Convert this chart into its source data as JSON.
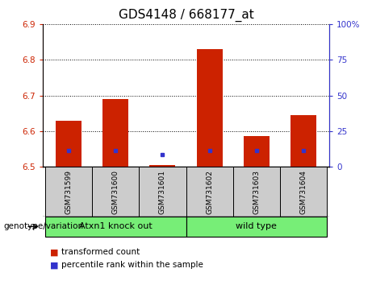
{
  "title": "GDS4148 / 668177_at",
  "samples": [
    "GSM731599",
    "GSM731600",
    "GSM731601",
    "GSM731602",
    "GSM731603",
    "GSM731604"
  ],
  "red_bar_tops": [
    6.63,
    6.69,
    6.505,
    6.83,
    6.585,
    6.645
  ],
  "blue_square_y": [
    6.545,
    6.545,
    6.535,
    6.545,
    6.545,
    6.545
  ],
  "bar_bottom": 6.5,
  "ylim_left": [
    6.5,
    6.9
  ],
  "ylim_right": [
    0,
    100
  ],
  "yticks_left": [
    6.5,
    6.6,
    6.7,
    6.8,
    6.9
  ],
  "yticks_right": [
    0,
    25,
    50,
    75,
    100
  ],
  "ytick_labels_right": [
    "0",
    "25",
    "50",
    "75",
    "100%"
  ],
  "bar_color": "#cc2200",
  "blue_color": "#3333cc",
  "grid_color": "#000000",
  "plot_bg": "#ffffff",
  "sample_bg": "#cccccc",
  "group1_label": "Atxn1 knock out",
  "group2_label": "wild type",
  "group_bg": "#77ee77",
  "group1_indices": [
    0,
    1,
    2
  ],
  "group2_indices": [
    3,
    4,
    5
  ],
  "legend_red_label": "transformed count",
  "legend_blue_label": "percentile rank within the sample",
  "genotype_label": "genotype/variation",
  "bar_width": 0.55,
  "title_fontsize": 11,
  "tick_fontsize": 7.5,
  "sample_fontsize": 6.5,
  "group_fontsize": 8,
  "legend_fontsize": 7.5,
  "genotype_fontsize": 7.5
}
